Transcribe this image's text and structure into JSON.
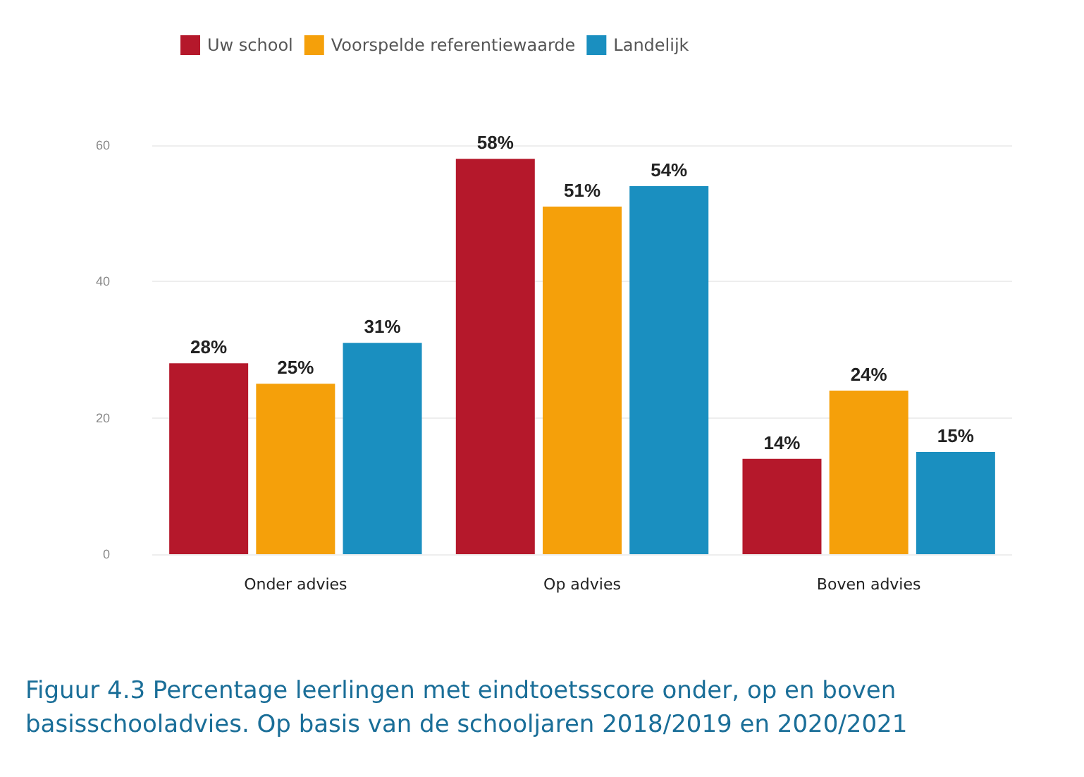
{
  "chart_data": {
    "type": "bar",
    "categories": [
      "Onder advies",
      "Op advies",
      "Boven advies"
    ],
    "series": [
      {
        "name": "Uw school",
        "color": "#b5182b",
        "values": [
          28,
          58,
          14
        ],
        "value_labels": [
          "28%",
          "58%",
          "14%"
        ]
      },
      {
        "name": "Voorspelde referentiewaarde",
        "color": "#f5a00a",
        "values": [
          25,
          51,
          24
        ],
        "value_labels": [
          "25%",
          "51%",
          "24%"
        ]
      },
      {
        "name": "Landelijk",
        "color": "#1a8fc0",
        "values": [
          31,
          54,
          15
        ],
        "value_labels": [
          "31%",
          "54%",
          "15%"
        ]
      }
    ],
    "ylim": [
      0,
      60
    ],
    "yticks": [
      0,
      20,
      40,
      60
    ],
    "grid": "y",
    "legend": "top left",
    "annotations": [
      "Figuur 4.3 Percentage leerlingen met eindtoetsscore onder, op en boven basisschooladvies. Op basis van de schooljaren 2018/2019 en 2020/2021"
    ]
  }
}
